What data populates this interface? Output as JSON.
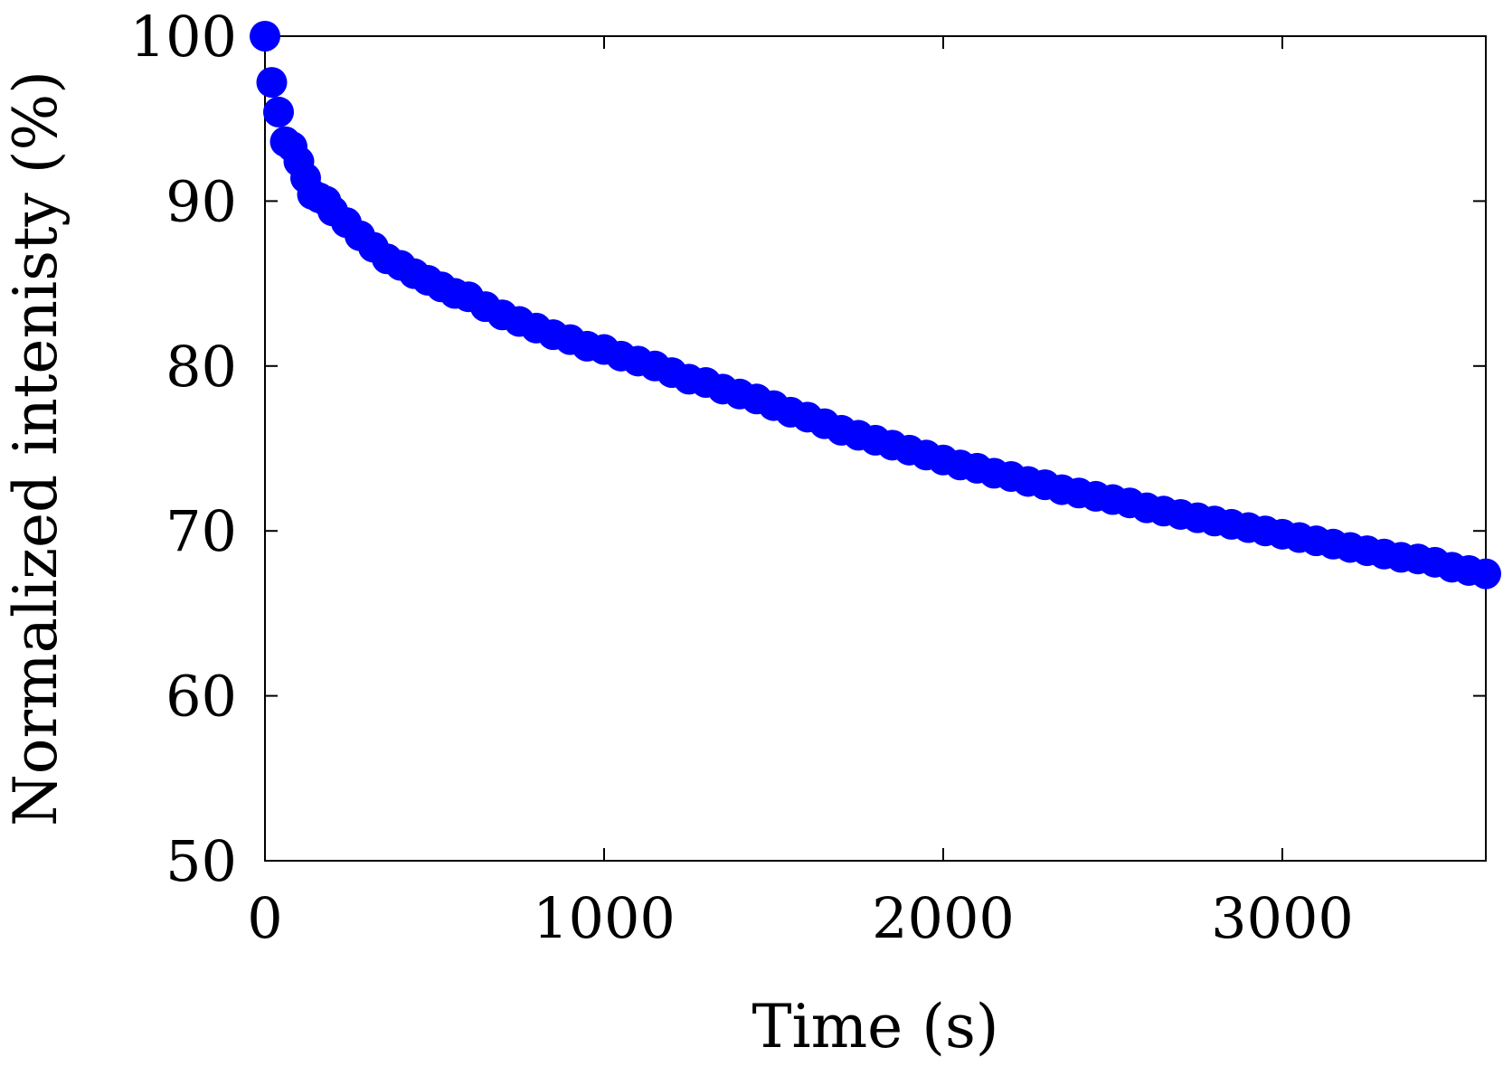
{
  "chart_data": {
    "type": "scatter",
    "xlabel": "Time (s)",
    "ylabel": "Normalized intenisty (%)",
    "xlim": [
      0,
      3600
    ],
    "ylim": [
      50,
      100
    ],
    "x_ticks": [
      0,
      1000,
      2000,
      3000
    ],
    "y_ticks": [
      50,
      60,
      70,
      80,
      90,
      100
    ],
    "grid": false,
    "legend": "none",
    "marker_color": "#0000ff",
    "series": [
      {
        "x": [
          0,
          20,
          40,
          60,
          80,
          100,
          120,
          140,
          160,
          180,
          200,
          240,
          280,
          320,
          360,
          400,
          440,
          480,
          520,
          560,
          600,
          650,
          700,
          750,
          800,
          850,
          900,
          950,
          1000,
          1050,
          1100,
          1150,
          1200,
          1250,
          1300,
          1350,
          1400,
          1450,
          1500,
          1550,
          1600,
          1650,
          1700,
          1750,
          1800,
          1850,
          1900,
          1950,
          2000,
          2050,
          2100,
          2150,
          2200,
          2250,
          2300,
          2350,
          2400,
          2450,
          2500,
          2550,
          2600,
          2650,
          2700,
          2750,
          2800,
          2850,
          2900,
          2950,
          3000,
          3050,
          3100,
          3150,
          3200,
          3250,
          3300,
          3350,
          3400,
          3450,
          3500,
          3550,
          3600
        ],
        "y": [
          100,
          97.2,
          95.4,
          93.6,
          93.3,
          92.4,
          91.4,
          90.4,
          90.2,
          90.0,
          89.4,
          88.7,
          87.9,
          87.2,
          86.5,
          86.1,
          85.6,
          85.2,
          84.8,
          84.4,
          84.2,
          83.6,
          83.1,
          82.7,
          82.3,
          81.9,
          81.6,
          81.2,
          81.0,
          80.6,
          80.3,
          80.0,
          79.6,
          79.2,
          79.0,
          78.6,
          78.3,
          78.0,
          77.6,
          77.2,
          76.9,
          76.5,
          76.1,
          75.8,
          75.5,
          75.2,
          74.9,
          74.6,
          74.3,
          74.0,
          73.8,
          73.5,
          73.3,
          73.0,
          72.8,
          72.5,
          72.3,
          72.1,
          71.9,
          71.7,
          71.4,
          71.2,
          71.0,
          70.8,
          70.6,
          70.4,
          70.2,
          70.0,
          69.8,
          69.6,
          69.4,
          69.2,
          69.0,
          68.8,
          68.6,
          68.4,
          68.3,
          68.1,
          67.8,
          67.6,
          67.4
        ]
      }
    ]
  }
}
